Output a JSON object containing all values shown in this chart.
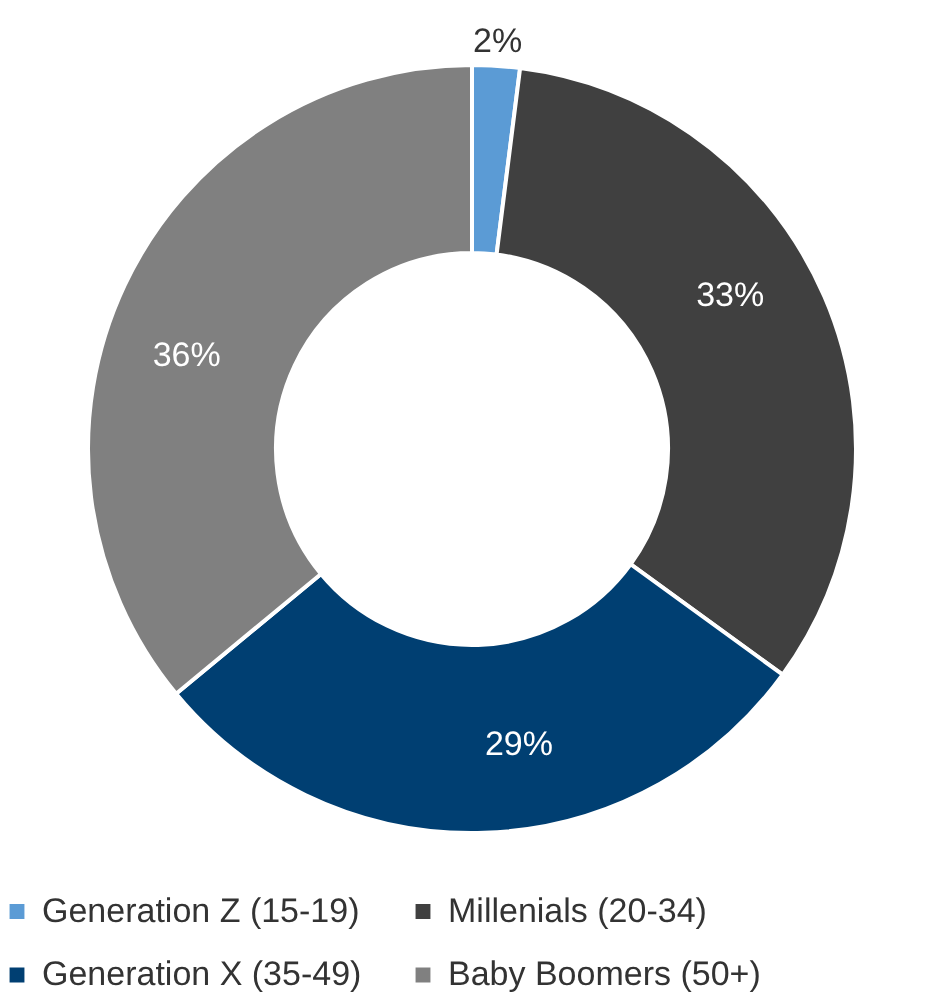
{
  "chart_data": {
    "type": "donut",
    "categories": [
      "Generation Z (15-19)",
      "Millenials (20-34)",
      "Generation X (35-49)",
      "Baby Boomers (50+)"
    ],
    "values": [
      2,
      33,
      29,
      36
    ],
    "value_labels": [
      "2%",
      "33%",
      "29%",
      "36%"
    ],
    "colors": [
      "#5b9bd5",
      "#404040",
      "#003f72",
      "#808080"
    ],
    "legend": "bottom"
  }
}
